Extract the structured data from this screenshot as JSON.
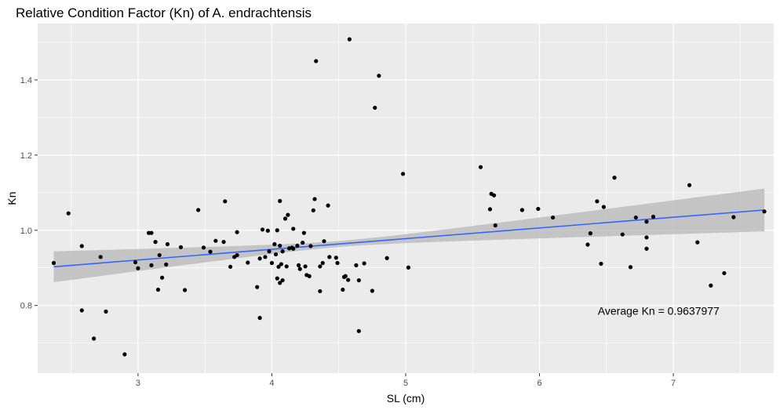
{
  "chart_data": {
    "type": "scatter",
    "title": "Relative Condition Factor (Kn) of A. endrachtensis",
    "xlabel": "SL (cm)",
    "ylabel": "Kn",
    "xlim": [
      2.25,
      7.75
    ],
    "ylim": [
      0.62,
      1.55
    ],
    "x_ticks": [
      3,
      4,
      5,
      6,
      7
    ],
    "x_tick_labels": [
      "3",
      "4",
      "5",
      "6",
      "7"
    ],
    "y_ticks": [
      0.8,
      1.0,
      1.2,
      1.4
    ],
    "y_tick_labels": [
      "0.8",
      "1.0",
      "1.2",
      "1.4"
    ],
    "grid": true,
    "background_color": "#ebebeb",
    "grid_color": "#ffffff",
    "point_color": "#000000",
    "fit_line_color": "#3366ff",
    "ci_band_color": "#bdbdbd",
    "fit": {
      "type": "linear",
      "x": [
        2.37,
        7.68
      ],
      "y": [
        0.903,
        1.054
      ],
      "ci_lower": [
        0.862,
        0.997
      ],
      "ci_upper": [
        0.944,
        1.111
      ],
      "ci_mid_x": 4.5,
      "ci_mid_lower": 0.955,
      "ci_mid_upper": 0.971
    },
    "annotation": "Average Kn = 0.9637977",
    "annotation_x": 6.89,
    "annotation_y": 0.775,
    "points": [
      [
        2.37,
        0.913
      ],
      [
        2.48,
        1.045
      ],
      [
        2.58,
        0.958
      ],
      [
        2.58,
        0.787
      ],
      [
        2.67,
        0.712
      ],
      [
        2.72,
        0.929
      ],
      [
        2.76,
        0.784
      ],
      [
        2.9,
        0.67
      ],
      [
        2.98,
        0.915
      ],
      [
        3.0,
        0.899
      ],
      [
        3.08,
        0.993
      ],
      [
        3.1,
        0.993
      ],
      [
        3.1,
        0.907
      ],
      [
        3.13,
        0.969
      ],
      [
        3.15,
        0.842
      ],
      [
        3.16,
        0.934
      ],
      [
        3.18,
        0.874
      ],
      [
        3.21,
        0.909
      ],
      [
        3.22,
        0.963
      ],
      [
        3.32,
        0.955
      ],
      [
        3.35,
        0.841
      ],
      [
        3.45,
        1.054
      ],
      [
        3.49,
        0.954
      ],
      [
        3.54,
        0.943
      ],
      [
        3.58,
        0.972
      ],
      [
        3.64,
        0.969
      ],
      [
        3.65,
        1.077
      ],
      [
        3.69,
        0.903
      ],
      [
        3.72,
        0.929
      ],
      [
        3.74,
        0.995
      ],
      [
        3.74,
        0.934
      ],
      [
        3.82,
        0.914
      ],
      [
        3.89,
        0.849
      ],
      [
        3.91,
        0.925
      ],
      [
        3.91,
        0.767
      ],
      [
        3.93,
        1.002
      ],
      [
        3.95,
        0.929
      ],
      [
        3.97,
        0.999
      ],
      [
        3.98,
        0.944
      ],
      [
        4.0,
        0.913
      ],
      [
        4.02,
        0.963
      ],
      [
        4.03,
        0.936
      ],
      [
        4.04,
        0.872
      ],
      [
        4.04,
        1.0
      ],
      [
        4.05,
        0.903
      ],
      [
        4.06,
        0.86
      ],
      [
        4.06,
        1.078
      ],
      [
        4.06,
        0.959
      ],
      [
        4.07,
        0.91
      ],
      [
        4.08,
        0.867
      ],
      [
        4.08,
        0.944
      ],
      [
        4.1,
        1.031
      ],
      [
        4.11,
        0.904
      ],
      [
        4.12,
        1.041
      ],
      [
        4.13,
        0.952
      ],
      [
        4.15,
        0.954
      ],
      [
        4.16,
        0.951
      ],
      [
        4.16,
        1.004
      ],
      [
        4.19,
        0.959
      ],
      [
        4.2,
        0.907
      ],
      [
        4.21,
        0.897
      ],
      [
        4.23,
        0.967
      ],
      [
        4.24,
        0.993
      ],
      [
        4.25,
        0.904
      ],
      [
        4.26,
        0.881
      ],
      [
        4.28,
        0.878
      ],
      [
        4.29,
        0.958
      ],
      [
        4.31,
        1.053
      ],
      [
        4.32,
        1.083
      ],
      [
        4.33,
        1.45
      ],
      [
        4.36,
        0.838
      ],
      [
        4.36,
        0.904
      ],
      [
        4.38,
        0.913
      ],
      [
        4.39,
        0.971
      ],
      [
        4.42,
        1.066
      ],
      [
        4.43,
        0.929
      ],
      [
        4.48,
        0.927
      ],
      [
        4.49,
        0.913
      ],
      [
        4.53,
        0.842
      ],
      [
        4.54,
        0.876
      ],
      [
        4.55,
        0.878
      ],
      [
        4.57,
        0.868
      ],
      [
        4.58,
        1.508
      ],
      [
        4.63,
        0.907
      ],
      [
        4.65,
        0.732
      ],
      [
        4.65,
        0.867
      ],
      [
        4.69,
        0.912
      ],
      [
        4.75,
        0.839
      ],
      [
        4.77,
        1.326
      ],
      [
        4.8,
        1.411
      ],
      [
        4.86,
        0.926
      ],
      [
        4.98,
        1.15
      ],
      [
        5.02,
        0.901
      ],
      [
        5.56,
        1.168
      ],
      [
        5.63,
        1.056
      ],
      [
        5.64,
        1.097
      ],
      [
        5.66,
        1.093
      ],
      [
        5.67,
        1.013
      ],
      [
        5.87,
        1.054
      ],
      [
        5.99,
        1.057
      ],
      [
        6.1,
        1.034
      ],
      [
        6.36,
        0.962
      ],
      [
        6.38,
        0.992
      ],
      [
        6.43,
        1.077
      ],
      [
        6.46,
        0.911
      ],
      [
        6.48,
        1.062
      ],
      [
        6.56,
        1.14
      ],
      [
        6.62,
        0.989
      ],
      [
        6.68,
        0.902
      ],
      [
        6.72,
        1.034
      ],
      [
        6.8,
        1.023
      ],
      [
        6.8,
        0.981
      ],
      [
        6.8,
        0.951
      ],
      [
        6.85,
        1.036
      ],
      [
        7.12,
        1.12
      ],
      [
        7.18,
        0.968
      ],
      [
        7.28,
        0.853
      ],
      [
        7.38,
        0.886
      ],
      [
        7.45,
        1.035
      ],
      [
        7.68,
        1.05
      ]
    ]
  }
}
